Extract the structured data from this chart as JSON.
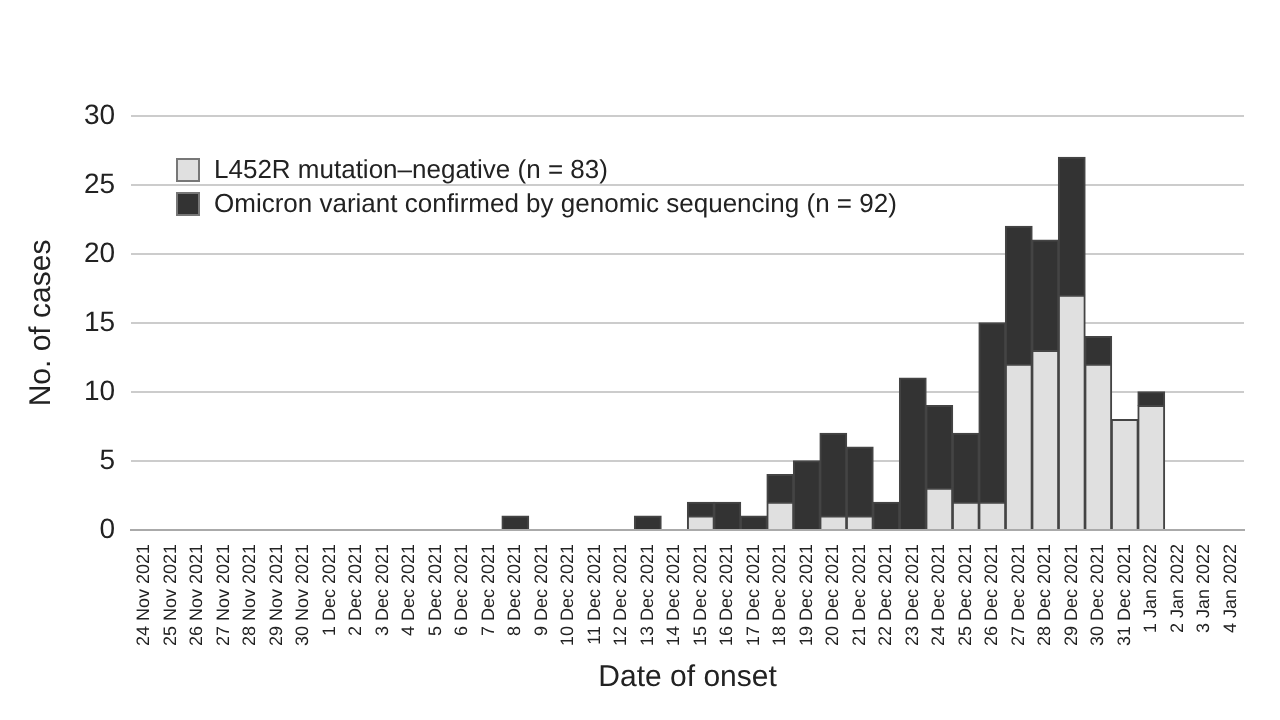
{
  "chart_data": {
    "type": "bar",
    "stacked": true,
    "xlabel": "Date of onset",
    "ylabel": "No. of cases",
    "categories": [
      "24 Nov 2021",
      "25 Nov 2021",
      "26 Nov 2021",
      "27 Nov 2021",
      "28 Nov 2021",
      "29 Nov 2021",
      "30 Nov 2021",
      "1 Dec 2021",
      "2 Dec 2021",
      "3 Dec 2021",
      "4 Dec 2021",
      "5 Dec 2021",
      "6 Dec 2021",
      "7 Dec 2021",
      "8 Dec 2021",
      "9 Dec 2021",
      "10 Dec 2021",
      "11 Dec 2021",
      "12 Dec 2021",
      "13 Dec 2021",
      "14 Dec 2021",
      "15 Dec 2021",
      "16 Dec 2021",
      "17 Dec 2021",
      "18 Dec 2021",
      "19 Dec 2021",
      "20 Dec 2021",
      "21 Dec 2021",
      "22 Dec 2021",
      "23 Dec 2021",
      "24 Dec 2021",
      "25 Dec 2021",
      "26 Dec 2021",
      "27 Dec 2021",
      "28 Dec 2021",
      "29 Dec 2021",
      "30 Dec 2021",
      "31 Dec 2021",
      "1 Jan 2022",
      "2 Jan 2022",
      "3 Jan 2022",
      "4 Jan 2022"
    ],
    "series": [
      {
        "name": "L452R mutation–negative (n = 83)",
        "color": "#e0e0e0",
        "values": [
          0,
          0,
          0,
          0,
          0,
          0,
          0,
          0,
          0,
          0,
          0,
          0,
          0,
          0,
          0,
          0,
          0,
          0,
          0,
          0,
          0,
          1,
          0,
          0,
          2,
          0,
          1,
          1,
          0,
          0,
          3,
          2,
          2,
          12,
          13,
          17,
          12,
          8,
          9,
          0,
          0,
          0
        ]
      },
      {
        "name": "Omicron variant confirmed by genomic sequencing (n = 92)",
        "color": "#333333",
        "values": [
          0,
          0,
          0,
          0,
          0,
          0,
          0,
          0,
          0,
          0,
          0,
          0,
          0,
          0,
          1,
          0,
          0,
          0,
          0,
          1,
          0,
          1,
          2,
          1,
          2,
          5,
          6,
          5,
          2,
          11,
          6,
          5,
          13,
          10,
          8,
          10,
          2,
          0,
          1,
          0,
          0,
          0
        ]
      }
    ],
    "ylim": [
      0,
      30
    ],
    "yticks": [
      0,
      5,
      10,
      15,
      20,
      25,
      30
    ],
    "grid": "y",
    "legend": "top left"
  }
}
